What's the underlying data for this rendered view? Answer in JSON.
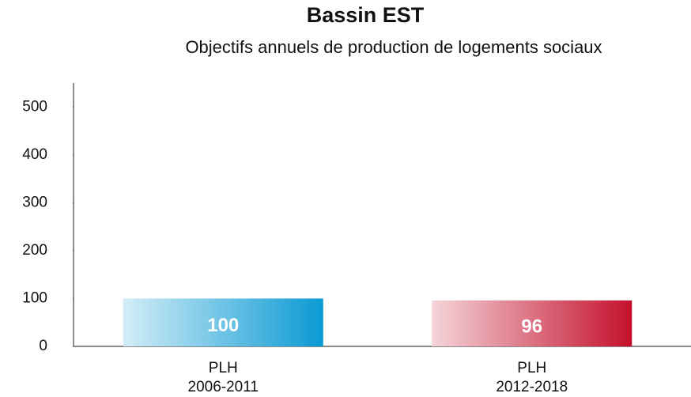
{
  "chart_data": {
    "type": "bar",
    "title": "Bassin EST",
    "subtitle": "Objectifs annuels de production de logements sociaux",
    "categories": [
      "PLH\n2006-2011",
      "PLH\n2012-2018"
    ],
    "values": [
      100,
      96
    ],
    "colors": [
      "#0a9ad4",
      "#c4102c"
    ],
    "ylim": [
      0,
      550
    ],
    "yticks": [
      0,
      100,
      200,
      300,
      400,
      500
    ],
    "grid": false
  }
}
